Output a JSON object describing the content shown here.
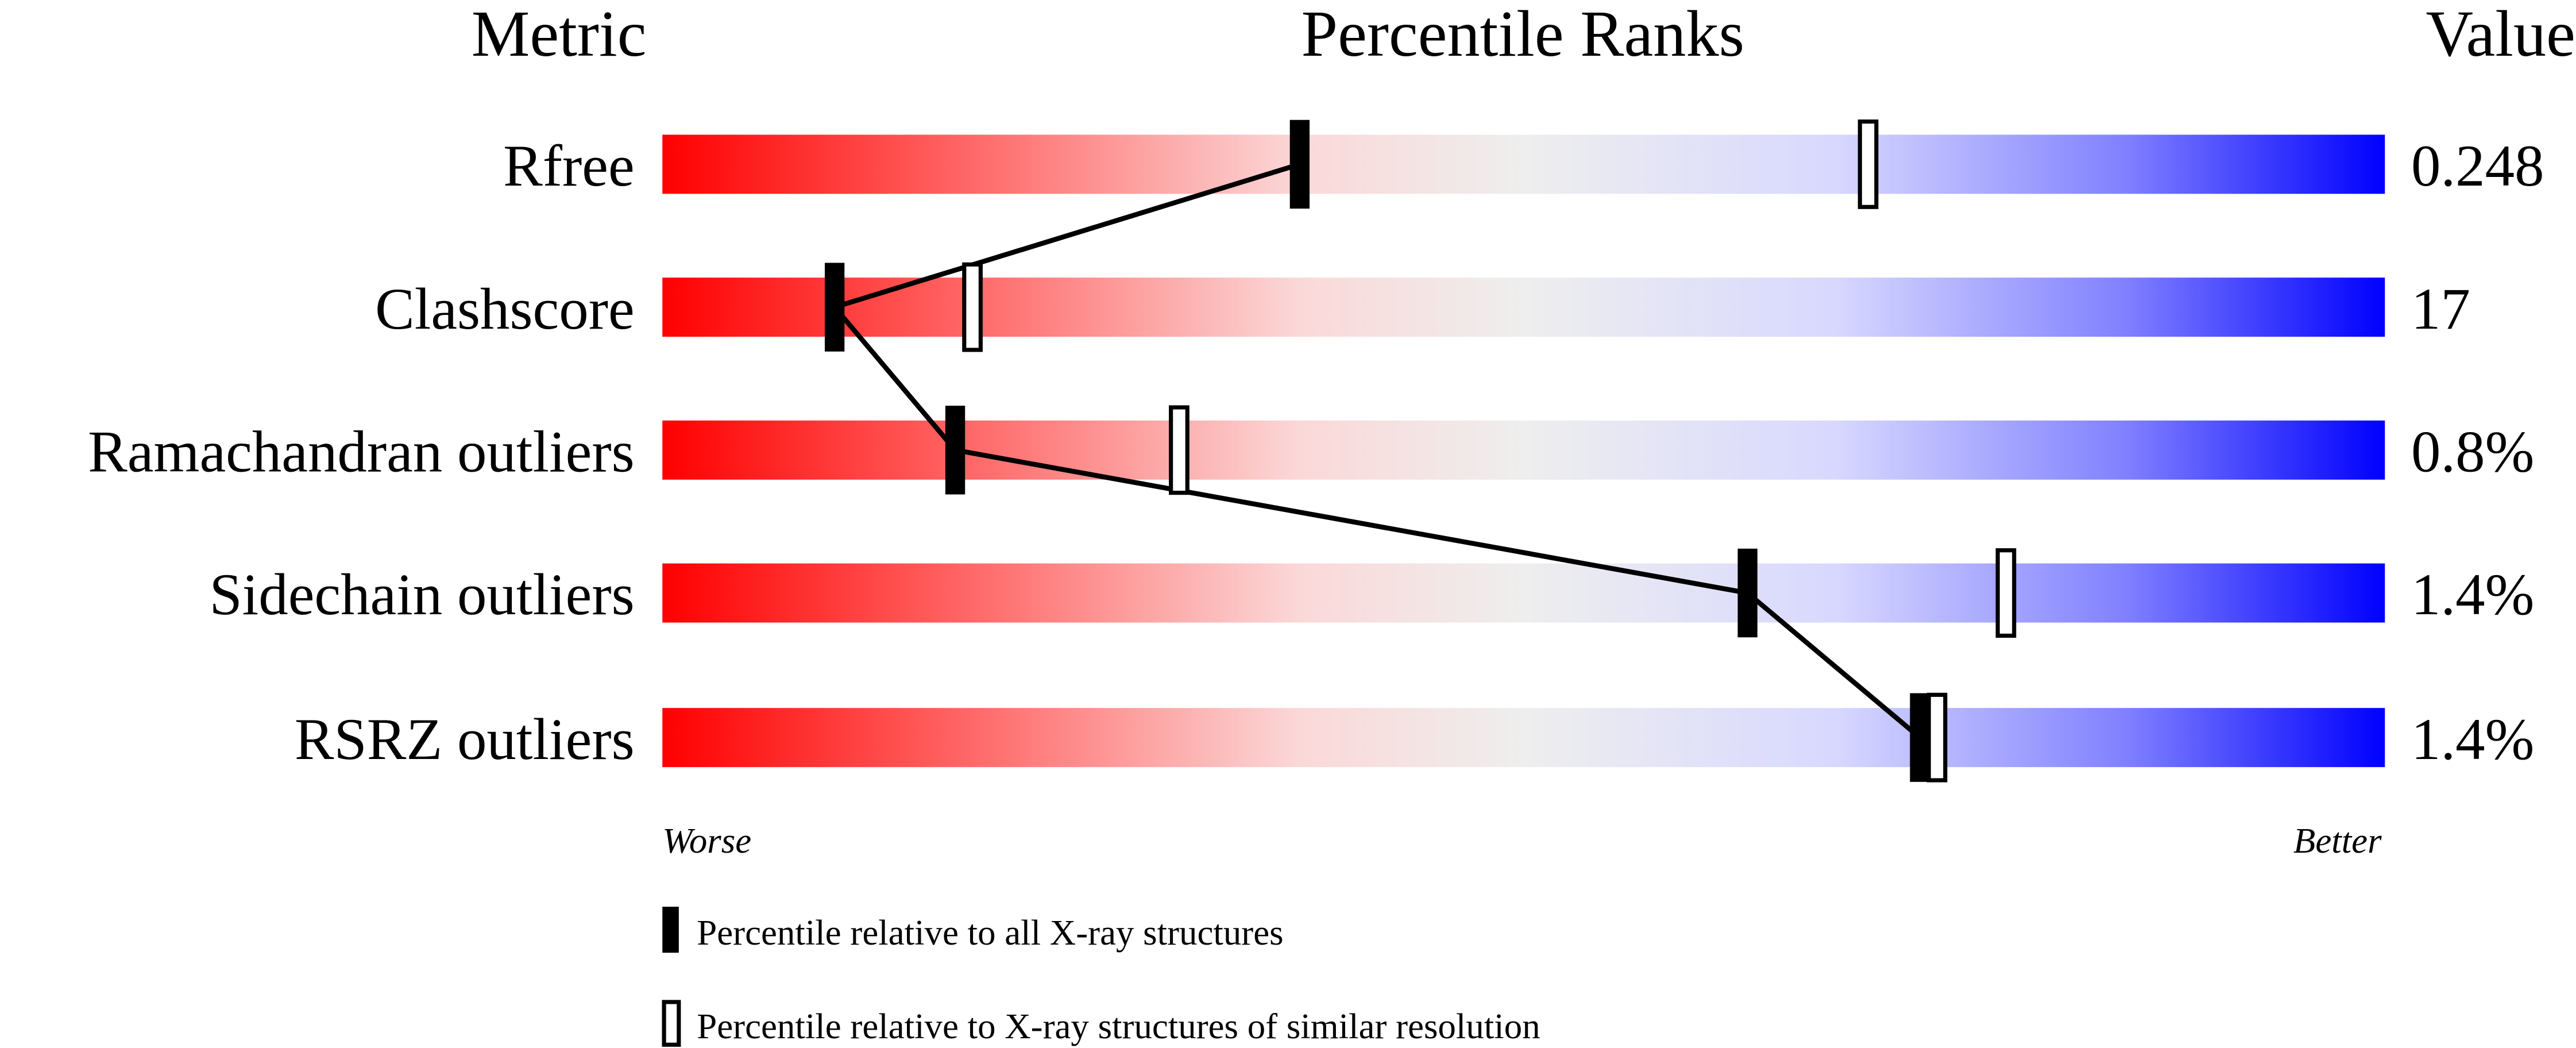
{
  "chart_data": {
    "type": "percentile-bar",
    "headers": {
      "metric": "Metric",
      "ranks": "Percentile Ranks",
      "value": "Value"
    },
    "xlim": [
      0,
      100
    ],
    "metrics": [
      {
        "name": "Rfree",
        "value": "0.248",
        "percentile_all": 37,
        "percentile_similar": 70
      },
      {
        "name": "Clashscore",
        "value": "17",
        "percentile_all": 10,
        "percentile_similar": 18
      },
      {
        "name": "Ramachandran outliers",
        "value": "0.8%",
        "percentile_all": 17,
        "percentile_similar": 30
      },
      {
        "name": "Sidechain outliers",
        "value": "1.4%",
        "percentile_all": 63,
        "percentile_similar": 78
      },
      {
        "name": "RSRZ outliers",
        "value": "1.4%",
        "percentile_all": 73,
        "percentile_similar": 74
      }
    ],
    "axis_labels": {
      "left": "Worse",
      "right": "Better"
    },
    "legend": [
      {
        "marker": "filled",
        "label": "Percentile relative to all X-ray structures"
      },
      {
        "marker": "open",
        "label": "Percentile relative to X-ray structures of similar resolution"
      }
    ],
    "colors": {
      "worse": "#ff0000",
      "mid": "#eeeeee",
      "better": "#0000ff"
    }
  }
}
